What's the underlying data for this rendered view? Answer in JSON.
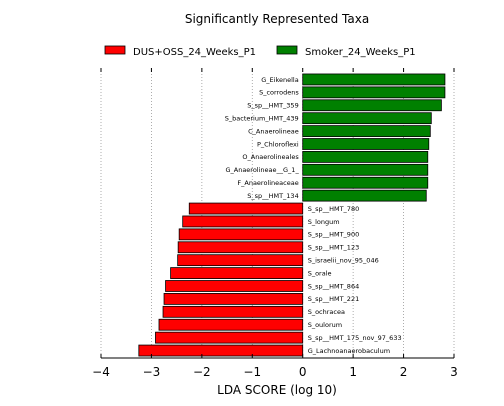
{
  "chart_data": {
    "type": "bar",
    "orientation": "horizontal",
    "title": "Significantly Represented Taxa",
    "xlabel": "LDA SCORE (log 10)",
    "ylabel": "",
    "xlim": [
      -4,
      3
    ],
    "xticks": [
      "−4",
      "−3",
      "−2",
      "−1",
      "0",
      "1",
      "2",
      "3"
    ],
    "grid": "vertical dotted",
    "legend_placement": "top",
    "series": [
      {
        "name": "DUS+OSS_24_Weeks_P1",
        "color": "#ff0000"
      },
      {
        "name": "Smoker_24_Weeks_P1",
        "color": "#008000"
      }
    ],
    "bars": [
      {
        "label": "G_Eikenella",
        "value": 2.82,
        "group": 1
      },
      {
        "label": "S_corrodens",
        "value": 2.82,
        "group": 1
      },
      {
        "label": "S_sp__HMT_359",
        "value": 2.75,
        "group": 1
      },
      {
        "label": "S_bacterium_HMT_439",
        "value": 2.55,
        "group": 1
      },
      {
        "label": "C_Anaerolineae",
        "value": 2.53,
        "group": 1
      },
      {
        "label": "P_Chloroflexi",
        "value": 2.5,
        "group": 1
      },
      {
        "label": "O_Anaerolineales",
        "value": 2.48,
        "group": 1
      },
      {
        "label": "G_Anaerolineae__G_1_",
        "value": 2.48,
        "group": 1
      },
      {
        "label": "F_Anaerolineaceae",
        "value": 2.48,
        "group": 1
      },
      {
        "label": "S_sp__HMT_134",
        "value": 2.45,
        "group": 1
      },
      {
        "label": "S_sp__HMT_780",
        "value": -2.25,
        "group": 0
      },
      {
        "label": "S_longum",
        "value": -2.38,
        "group": 0
      },
      {
        "label": "S_sp__HMT_900",
        "value": -2.45,
        "group": 0
      },
      {
        "label": "S_sp__HMT_123",
        "value": -2.47,
        "group": 0
      },
      {
        "label": "S_israelii_nov_95_046",
        "value": -2.48,
        "group": 0
      },
      {
        "label": "S_orale",
        "value": -2.62,
        "group": 0
      },
      {
        "label": "S_sp__HMT_864",
        "value": -2.72,
        "group": 0
      },
      {
        "label": "S_sp__HMT_221",
        "value": -2.75,
        "group": 0
      },
      {
        "label": "S_ochracea",
        "value": -2.77,
        "group": 0
      },
      {
        "label": "S_oulorum",
        "value": -2.85,
        "group": 0
      },
      {
        "label": "S_sp__HMT_175_nov_97_633",
        "value": -2.92,
        "group": 0
      },
      {
        "label": "G_Lachnoanaerobaculum",
        "value": -3.25,
        "group": 0
      }
    ]
  }
}
